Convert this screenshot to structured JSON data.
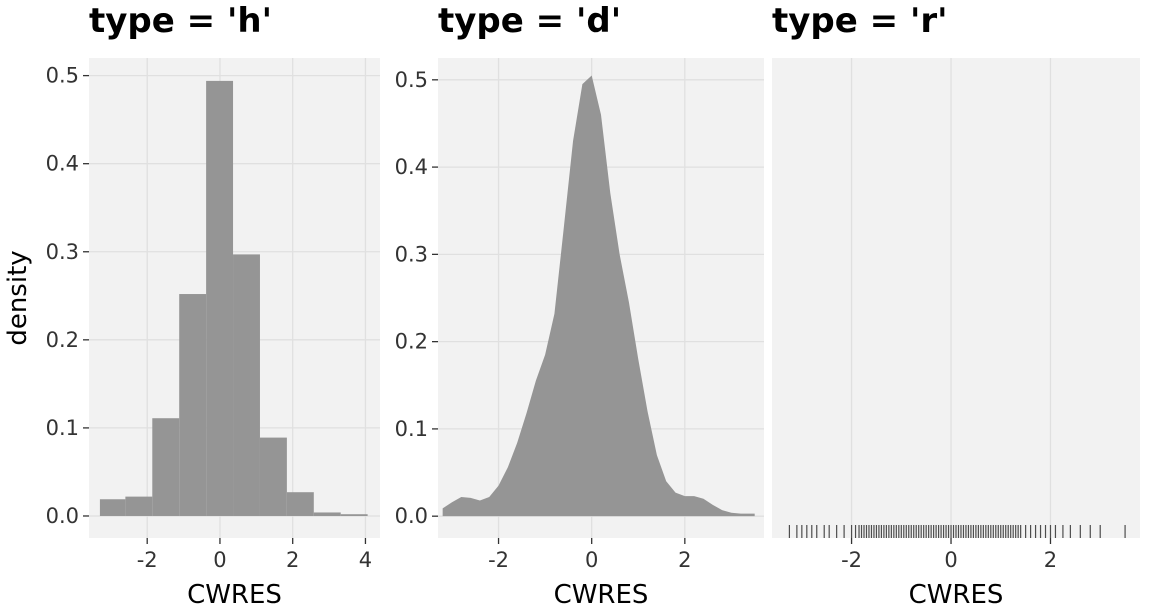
{
  "figure": {
    "ylabel": "density"
  },
  "colors": {
    "panel_background": "#f2f2f2",
    "grid": "#e0e0e0",
    "fill": "#959595",
    "rug": "#4d4d4d",
    "tick_text": "#333333"
  },
  "chart_data": [
    {
      "type": "bar",
      "title": "type = 'h'",
      "xlabel": "CWRES",
      "ylabel": "density",
      "xlim": [
        -3.6,
        4.4
      ],
      "ylim": [
        -0.025,
        0.52
      ],
      "xticks": [
        -2,
        0,
        2,
        4
      ],
      "yticks": [
        0.0,
        0.1,
        0.2,
        0.3,
        0.4,
        0.5
      ],
      "bins": [
        {
          "x0": -3.3,
          "x1": -2.6,
          "value": 0.019
        },
        {
          "x0": -2.6,
          "x1": -1.86,
          "value": 0.022
        },
        {
          "x0": -1.86,
          "x1": -1.12,
          "value": 0.111
        },
        {
          "x0": -1.12,
          "x1": -0.38,
          "value": 0.252
        },
        {
          "x0": -0.38,
          "x1": 0.36,
          "value": 0.494
        },
        {
          "x0": 0.36,
          "x1": 1.1,
          "value": 0.297
        },
        {
          "x0": 1.1,
          "x1": 1.84,
          "value": 0.089
        },
        {
          "x0": 1.84,
          "x1": 2.58,
          "value": 0.027
        },
        {
          "x0": 2.58,
          "x1": 3.32,
          "value": 0.004
        },
        {
          "x0": 3.32,
          "x1": 4.06,
          "value": 0.002
        }
      ]
    },
    {
      "type": "area",
      "title": "type = 'd'",
      "xlabel": "CWRES",
      "ylabel": "",
      "xlim": [
        -3.3,
        3.7
      ],
      "ylim": [
        -0.025,
        0.525
      ],
      "xticks": [
        -2,
        0,
        2
      ],
      "yticks": [
        0.0,
        0.1,
        0.2,
        0.3,
        0.4,
        0.5
      ],
      "x": [
        -3.2,
        -3.0,
        -2.8,
        -2.6,
        -2.4,
        -2.2,
        -2.0,
        -1.8,
        -1.6,
        -1.4,
        -1.2,
        -1.0,
        -0.8,
        -0.6,
        -0.4,
        -0.2,
        0.0,
        0.2,
        0.4,
        0.6,
        0.8,
        1.0,
        1.2,
        1.4,
        1.6,
        1.8,
        2.0,
        2.2,
        2.4,
        2.6,
        2.8,
        3.0,
        3.2,
        3.5
      ],
      "y": [
        0.009,
        0.016,
        0.022,
        0.021,
        0.018,
        0.022,
        0.035,
        0.056,
        0.084,
        0.118,
        0.155,
        0.185,
        0.232,
        0.33,
        0.43,
        0.495,
        0.505,
        0.46,
        0.37,
        0.3,
        0.245,
        0.18,
        0.12,
        0.07,
        0.04,
        0.027,
        0.023,
        0.023,
        0.02,
        0.013,
        0.007,
        0.004,
        0.003,
        0.003
      ]
    },
    {
      "type": "rug",
      "title": "type = 'r'",
      "xlabel": "CWRES",
      "ylabel": "",
      "xlim": [
        -3.6,
        3.8
      ],
      "xticks": [
        -2,
        0,
        2
      ],
      "rug_x": [
        -3.25,
        -3.1,
        -3.0,
        -2.9,
        -2.8,
        -2.7,
        -2.55,
        -2.45,
        -2.3,
        -2.15,
        -2.0,
        -1.92,
        -1.85,
        -1.8,
        -1.75,
        -1.7,
        -1.65,
        -1.6,
        -1.55,
        -1.5,
        -1.45,
        -1.4,
        -1.35,
        -1.3,
        -1.25,
        -1.2,
        -1.15,
        -1.1,
        -1.05,
        -1.0,
        -0.95,
        -0.9,
        -0.85,
        -0.8,
        -0.75,
        -0.7,
        -0.65,
        -0.6,
        -0.55,
        -0.5,
        -0.45,
        -0.4,
        -0.35,
        -0.3,
        -0.25,
        -0.2,
        -0.15,
        -0.1,
        -0.05,
        0.0,
        0.05,
        0.1,
        0.15,
        0.2,
        0.25,
        0.3,
        0.35,
        0.4,
        0.45,
        0.5,
        0.55,
        0.6,
        0.65,
        0.7,
        0.75,
        0.8,
        0.85,
        0.9,
        0.95,
        1.0,
        1.05,
        1.1,
        1.15,
        1.2,
        1.25,
        1.3,
        1.35,
        1.4,
        1.5,
        1.6,
        1.7,
        1.8,
        1.9,
        2.0,
        2.1,
        2.25,
        2.4,
        2.6,
        2.8,
        3.0,
        3.5
      ]
    }
  ]
}
